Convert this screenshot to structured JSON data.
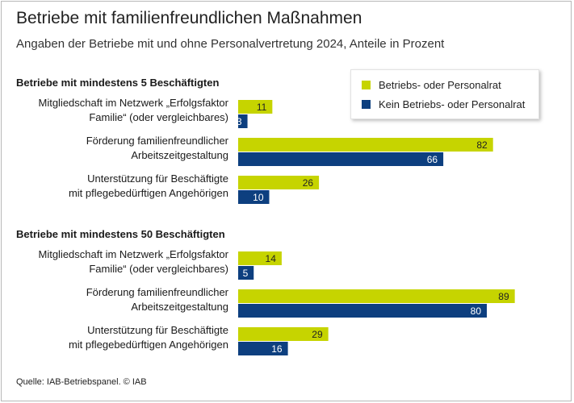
{
  "title": "Betriebe mit familienfreundlichen Maßnahmen",
  "subtitle": "Angaben der Betriebe mit und ohne Personalvertretung 2024, Anteile in Prozent",
  "source": "Quelle: IAB-Betriebspanel. © IAB",
  "colors": {
    "series1": "#c6d400",
    "series2": "#0d3f7f"
  },
  "chart_data": {
    "type": "bar",
    "orientation": "horizontal",
    "title": "Betriebe mit familienfreundlichen Maßnahmen",
    "subtitle": "Angaben der Betriebe mit und ohne Personalvertretung 2024, Anteile in Prozent",
    "xlim": [
      0,
      100
    ],
    "unit": "Prozent",
    "grid": false,
    "legend_position": "top-right",
    "series_names": [
      "Betriebs- oder Personalrat",
      "Kein Betriebs- oder Personalrat"
    ],
    "groups": [
      {
        "label": "Betriebe mit mindestens 5 Beschäftigten",
        "categories": [
          [
            "Mitgliedschaft im Netzwerk „Erfolgsfaktor",
            "Familie“ (oder vergleichbares)"
          ],
          [
            "Förderung familienfreundlicher",
            "Arbeitszeitgestaltung"
          ],
          [
            "Unterstützung für Beschäftigte",
            "mit pflegebedürftigen Angehörigen"
          ]
        ],
        "series": [
          {
            "name": "Betriebs- oder Personalrat",
            "values": [
              11,
              82,
              26
            ]
          },
          {
            "name": "Kein Betriebs- oder Personalrat",
            "values": [
              3,
              66,
              10
            ]
          }
        ]
      },
      {
        "label": "Betriebe mit mindestens 50 Beschäftigten",
        "categories": [
          [
            "Mitgliedschaft im Netzwerk „Erfolgsfaktor",
            "Familie“ (oder vergleichbares)"
          ],
          [
            "Förderung familienfreundlicher",
            "Arbeitszeitgestaltung"
          ],
          [
            "Unterstützung für Beschäftigte",
            "mit pflegebedürftigen Angehörigen"
          ]
        ],
        "series": [
          {
            "name": "Betriebs- oder Personalrat",
            "values": [
              14,
              89,
              29
            ]
          },
          {
            "name": "Kein Betriebs- oder Personalrat",
            "values": [
              5,
              80,
              16
            ]
          }
        ]
      }
    ]
  }
}
